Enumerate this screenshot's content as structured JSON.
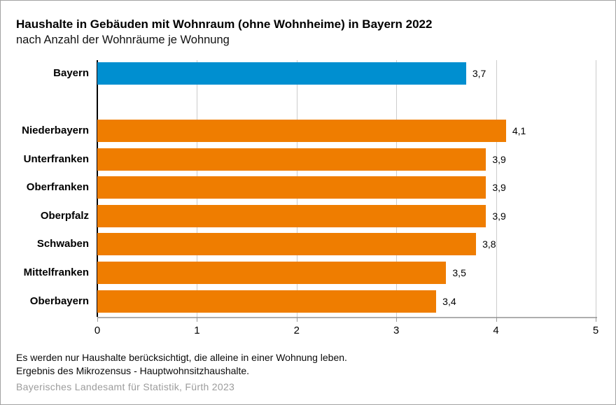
{
  "header": {
    "title": "Haushalte in Gebäuden mit Wohnraum (ohne Wohnheime) in Bayern 2022",
    "subtitle": "nach Anzahl der Wohnräume je Wohnung"
  },
  "chart_data": {
    "type": "bar",
    "orientation": "horizontal",
    "title": "Haushalte in Gebäuden mit Wohnraum (ohne Wohnheime) in Bayern 2022",
    "subtitle": "nach Anzahl der Wohnräume je Wohnung",
    "categories": [
      "Bayern",
      "Niederbayern",
      "Unterfranken",
      "Oberfranken",
      "Oberpfalz",
      "Schwaben",
      "Mittelfranken",
      "Oberbayern"
    ],
    "values": [
      3.7,
      4.1,
      3.9,
      3.9,
      3.9,
      3.8,
      3.5,
      3.4
    ],
    "value_labels": [
      "3,7",
      "4,1",
      "3,9",
      "3,9",
      "3,9",
      "3,8",
      "3,5",
      "3,4"
    ],
    "highlight_category": "Bayern",
    "highlight_color": "#008FD0",
    "bar_color": "#EF7D00",
    "xlim": [
      0,
      5
    ],
    "x_ticks": [
      "0",
      "1",
      "2",
      "3",
      "4",
      "5"
    ],
    "grid": "vertical-gridlines-on",
    "gridline_color": "#cccccc",
    "legend": "none",
    "xlabel": "",
    "ylabel": ""
  },
  "footnotes": {
    "line1": "Es werden nur Haushalte berücksichtigt, die alleine in einer Wohnung leben.",
    "line2": "Ergebnis des Mikrozensus - Hauptwohnsitzhaushalte."
  },
  "source": "Bayerisches Landesamt für Statistik, Fürth 2023"
}
